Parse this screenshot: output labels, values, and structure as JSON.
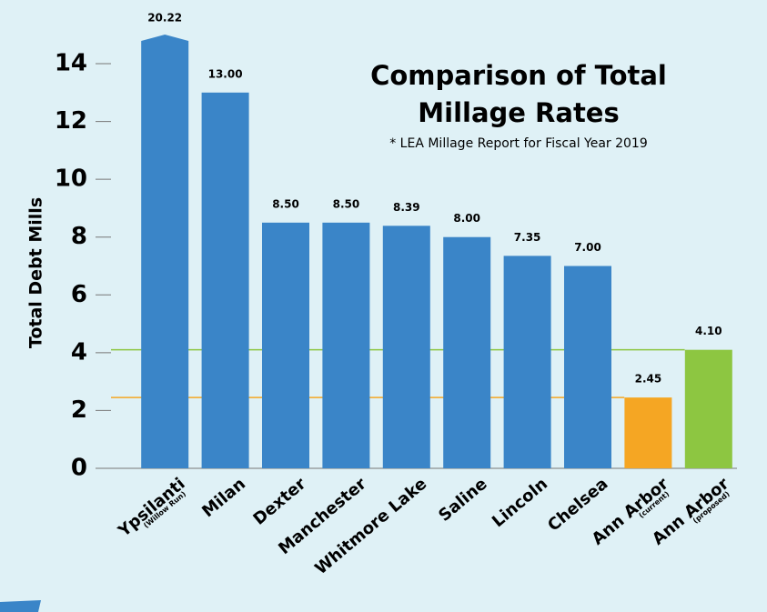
{
  "chart_data": {
    "type": "bar",
    "title": [
      "Comparison of Total",
      "Millage Rates"
    ],
    "subtitle": "* LEA Millage Report for Fiscal Year 2019",
    "y_label": "Total Debt Mills",
    "categories": [
      "Ypsilanti",
      "Milan",
      "Dexter",
      "Manchester",
      "Whitmore Lake",
      "Saline",
      "Lincoln",
      "Chelsea",
      "Ann Arbor",
      "Ann Arbor"
    ],
    "category_notes": [
      "(Willow Run)",
      null,
      null,
      null,
      null,
      null,
      null,
      null,
      "(current)",
      "(proposed)"
    ],
    "values": [
      20.22,
      13.0,
      8.5,
      8.5,
      8.39,
      8.0,
      7.35,
      7.0,
      2.45,
      4.1
    ],
    "value_labels": [
      "20.22",
      "13.00",
      "8.50",
      "8.50",
      "8.39",
      "8.00",
      "7.35",
      "7.00",
      "2.45",
      "4.10"
    ],
    "colors": [
      "#3a85c8",
      "#3a85c8",
      "#3a85c8",
      "#3a85c8",
      "#3a85c8",
      "#3a85c8",
      "#3a85c8",
      "#3a85c8",
      "#f5a623",
      "#8dc641"
    ],
    "ylim": [
      0,
      14
    ],
    "yticks": [
      0,
      2,
      4,
      6,
      8,
      10,
      12,
      14
    ]
  }
}
